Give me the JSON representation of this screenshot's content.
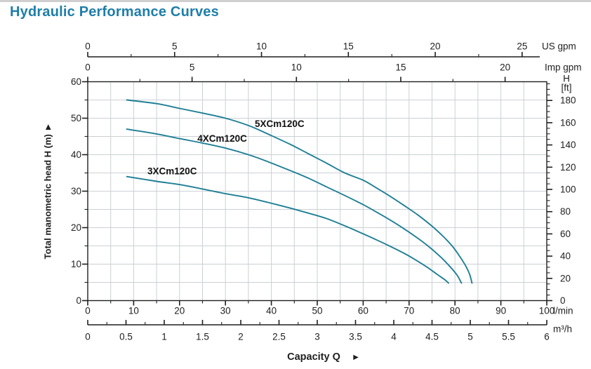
{
  "page": {
    "title": "Hydraulic Performance Curves"
  },
  "chart_data": {
    "type": "line",
    "title": "Hydraulic Performance Curves",
    "x_label": "Capacity Q",
    "y_label": "Total manometric head H (m)",
    "x_primary_unit": "l/min",
    "x_range_lmin": [
      0,
      100
    ],
    "y_range_m": [
      0,
      60
    ],
    "grid": "on, 5 l/min by 5 m",
    "legend_position": "labels-on-curves",
    "axes": {
      "us_gpm": {
        "unit": "US gpm",
        "ticks": [
          0,
          5,
          10,
          15,
          20,
          25
        ],
        "minor_step": 2.5,
        "lmin_per_unit": 3.785
      },
      "imp_gpm": {
        "unit": "Imp gpm",
        "ticks": [
          0,
          5,
          10,
          15,
          20
        ],
        "minor_step": 2.5,
        "lmin_per_unit": 4.546
      },
      "lmin": {
        "unit": "l/min",
        "ticks": [
          0,
          10,
          20,
          30,
          40,
          50,
          60,
          70,
          80,
          90,
          100
        ],
        "minor_step": 5
      },
      "m3h": {
        "unit": "m³/h",
        "tick_labels": [
          "0",
          "0.5",
          "1",
          "1.5",
          "2",
          "2.5",
          "3",
          "3.5",
          "4",
          "4.5",
          "5",
          "5.5",
          "6"
        ],
        "tick_values": [
          0,
          0.5,
          1,
          1.5,
          2,
          2.5,
          3,
          3.5,
          4,
          4.5,
          5,
          5.5,
          6
        ],
        "minor_step": 0.25,
        "lmin_per_unit": 16.6667
      },
      "head_m": {
        "unit_label": "Total manometric head H (m)",
        "ticks": [
          0,
          10,
          20,
          30,
          40,
          50,
          60
        ],
        "minor_step": 5
      },
      "head_ft": {
        "unit_lines": [
          "H",
          "[ft]"
        ],
        "ticks": [
          0,
          20,
          40,
          60,
          80,
          100,
          120,
          140,
          160,
          180
        ],
        "minor_step": 5,
        "m_per_ft": 0.3048
      }
    },
    "series": [
      {
        "name": "5XCm120C",
        "points": [
          [
            8.5,
            55
          ],
          [
            15,
            54
          ],
          [
            20,
            52.7
          ],
          [
            25,
            51.4
          ],
          [
            30,
            50
          ],
          [
            35,
            48
          ],
          [
            39,
            45.8
          ],
          [
            44,
            42.9
          ],
          [
            48,
            40.3
          ],
          [
            52,
            37.7
          ],
          [
            56,
            35
          ],
          [
            60,
            33
          ],
          [
            63,
            30.8
          ],
          [
            66,
            28.5
          ],
          [
            69,
            26
          ],
          [
            72,
            23.4
          ],
          [
            75,
            20.4
          ],
          [
            77.5,
            17.5
          ],
          [
            79.5,
            14.8
          ],
          [
            81,
            12.2
          ],
          [
            82.3,
            9.6
          ],
          [
            83.2,
            7.2
          ],
          [
            83.7,
            4.8
          ]
        ]
      },
      {
        "name": "4XCm120C",
        "points": [
          [
            8.5,
            47
          ],
          [
            15,
            45.7
          ],
          [
            20,
            44.4
          ],
          [
            25,
            43.2
          ],
          [
            30,
            41.8
          ],
          [
            35,
            40
          ],
          [
            39,
            38.2
          ],
          [
            44,
            35.7
          ],
          [
            48,
            33.6
          ],
          [
            52,
            31.2
          ],
          [
            56,
            28.8
          ],
          [
            60,
            26.3
          ],
          [
            63,
            24.2
          ],
          [
            66,
            22
          ],
          [
            69,
            19.6
          ],
          [
            72,
            17
          ],
          [
            74.5,
            14.6
          ],
          [
            77,
            11.8
          ],
          [
            79,
            9.2
          ],
          [
            80.5,
            6.9
          ],
          [
            81.4,
            4.8
          ]
        ]
      },
      {
        "name": "3XCm120C",
        "points": [
          [
            8.5,
            34
          ],
          [
            15,
            32.7
          ],
          [
            20,
            31.8
          ],
          [
            25,
            30.6
          ],
          [
            30,
            29.3
          ],
          [
            35,
            28.2
          ],
          [
            39,
            27
          ],
          [
            44,
            25.4
          ],
          [
            48,
            24
          ],
          [
            52,
            22.5
          ],
          [
            56,
            20.5
          ],
          [
            60,
            18.3
          ],
          [
            63,
            16.6
          ],
          [
            66,
            14.8
          ],
          [
            69,
            12.9
          ],
          [
            71.5,
            11.1
          ],
          [
            74,
            9.1
          ],
          [
            76,
            7.3
          ],
          [
            77.7,
            5.8
          ],
          [
            78.6,
            4.8
          ]
        ]
      }
    ],
    "series_labels": [
      {
        "text": "5XCm120C",
        "x_lmin": 36.4,
        "y_m": 48.5
      },
      {
        "text": "4XCm120C",
        "x_lmin": 23.9,
        "y_m": 44.4
      },
      {
        "text": "3XCm120C",
        "x_lmin": 13.0,
        "y_m": 35.5
      }
    ],
    "colors": {
      "curve": "#1f7f96",
      "grid": "#cbd0d4",
      "axis": "#1f1f1f",
      "title": "#1e7ea8",
      "label": "#111111"
    },
    "icons": {
      "arrow_right": "►"
    }
  }
}
